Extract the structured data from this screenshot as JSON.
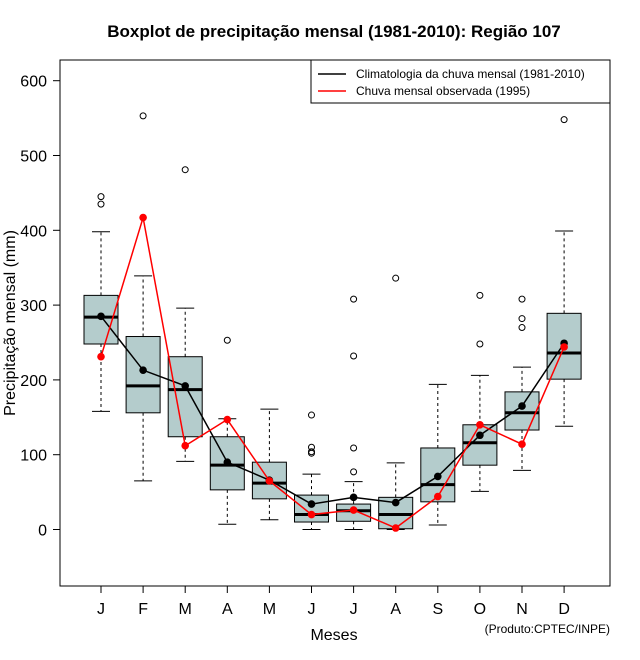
{
  "chart_data": {
    "type": "boxplot",
    "title": "Boxplot de precipitação mensal (1981-2010): Região 107",
    "xlabel": "Meses",
    "ylabel": "Precipitação mensal (mm)",
    "ylim": [
      -75,
      630
    ],
    "yticks": [
      0,
      100,
      200,
      300,
      400,
      500,
      600
    ],
    "categories": [
      "J",
      "F",
      "M",
      "A",
      "M",
      "J",
      "J",
      "A",
      "S",
      "O",
      "N",
      "D"
    ],
    "boxes": [
      {
        "whisker_low": 158,
        "q1": 248,
        "median": 284,
        "q3": 313,
        "whisker_high": 398,
        "outliers": [
          435,
          445
        ]
      },
      {
        "whisker_low": 65,
        "q1": 156,
        "median": 192,
        "q3": 258,
        "whisker_high": 339,
        "outliers": [
          553
        ]
      },
      {
        "whisker_low": 91,
        "q1": 124,
        "median": 187,
        "q3": 231,
        "whisker_high": 296,
        "outliers": [
          481
        ]
      },
      {
        "whisker_low": 7,
        "q1": 53,
        "median": 86,
        "q3": 124,
        "whisker_high": 148,
        "outliers": [
          253
        ]
      },
      {
        "whisker_low": 13,
        "q1": 41,
        "median": 62,
        "q3": 90,
        "whisker_high": 161,
        "outliers": []
      },
      {
        "whisker_low": 0,
        "q1": 10,
        "median": 20,
        "q3": 46,
        "whisker_high": 74,
        "outliers": [
          102,
          104,
          110,
          153
        ]
      },
      {
        "whisker_low": 0,
        "q1": 11,
        "median": 25,
        "q3": 34,
        "whisker_high": 64,
        "outliers": [
          77,
          109,
          232,
          308
        ]
      },
      {
        "whisker_low": 0,
        "q1": 1,
        "median": 20,
        "q3": 43,
        "whisker_high": 89,
        "outliers": [
          336
        ]
      },
      {
        "whisker_low": 6,
        "q1": 37,
        "median": 60,
        "q3": 109,
        "whisker_high": 194,
        "outliers": []
      },
      {
        "whisker_low": 51,
        "q1": 86,
        "median": 116,
        "q3": 140,
        "whisker_high": 206,
        "outliers": [
          248,
          313
        ]
      },
      {
        "whisker_low": 79,
        "q1": 133,
        "median": 156,
        "q3": 184,
        "whisker_high": 217,
        "outliers": [
          270,
          282,
          308
        ]
      },
      {
        "whisker_low": 138,
        "q1": 201,
        "median": 236,
        "q3": 289,
        "whisker_high": 399,
        "outliers": [
          548
        ]
      }
    ],
    "series": [
      {
        "name": "Climatologia da chuva mensal (1981-2010)",
        "color": "#000000",
        "values": [
          285,
          213,
          192,
          90,
          66,
          34,
          43,
          36,
          71,
          126,
          165,
          249
        ]
      },
      {
        "name": "Chuva mensal observada (1995)",
        "color": "#ff0000",
        "values": [
          231,
          417,
          112,
          147,
          65,
          20,
          26,
          2,
          44,
          140,
          114,
          244
        ]
      }
    ],
    "box_fill": "#b4cccc",
    "legend_position": "top-right",
    "credit": "(Produto:CPTEC/INPE)"
  }
}
